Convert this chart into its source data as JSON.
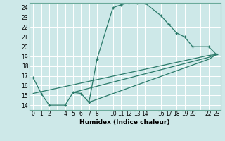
{
  "xlabel": "Humidex (Indice chaleur)",
  "background_color": "#cde8e8",
  "grid_color": "#ffffff",
  "line_color": "#2a7a6a",
  "xlim": [
    -0.5,
    23.5
  ],
  "ylim": [
    13.5,
    24.5
  ],
  "xticks": [
    0,
    1,
    2,
    3,
    4,
    5,
    6,
    7,
    8,
    9,
    10,
    11,
    12,
    13,
    14,
    15,
    16,
    17,
    18,
    19,
    20,
    21,
    22,
    23
  ],
  "xticklabels": [
    "0",
    "1",
    "2",
    "",
    "4",
    "5",
    "6",
    "7",
    "8",
    "",
    "10",
    "11",
    "12",
    "13",
    "14",
    "",
    "16",
    "17",
    "18",
    "19",
    "20",
    "",
    "22",
    "23"
  ],
  "yticks": [
    14,
    15,
    16,
    17,
    18,
    19,
    20,
    21,
    22,
    23,
    24
  ],
  "line1_x": [
    0,
    1,
    2,
    4,
    5,
    6,
    7,
    8,
    10,
    11,
    12,
    13,
    14,
    16,
    17,
    18,
    19,
    20,
    22,
    23
  ],
  "line1_y": [
    16.8,
    15.2,
    14.0,
    14.0,
    15.3,
    15.2,
    14.3,
    18.7,
    24.0,
    24.3,
    24.5,
    24.5,
    24.5,
    23.2,
    22.3,
    21.4,
    21.0,
    20.0,
    20.0,
    19.2
  ],
  "line2_x": [
    0,
    22,
    23
  ],
  "line2_y": [
    15.2,
    19.1,
    19.2
  ],
  "line3_x": [
    5,
    22,
    23
  ],
  "line3_y": [
    15.3,
    18.9,
    19.2
  ],
  "line4_x": [
    7,
    22,
    23
  ],
  "line4_y": [
    14.3,
    18.7,
    19.2
  ]
}
